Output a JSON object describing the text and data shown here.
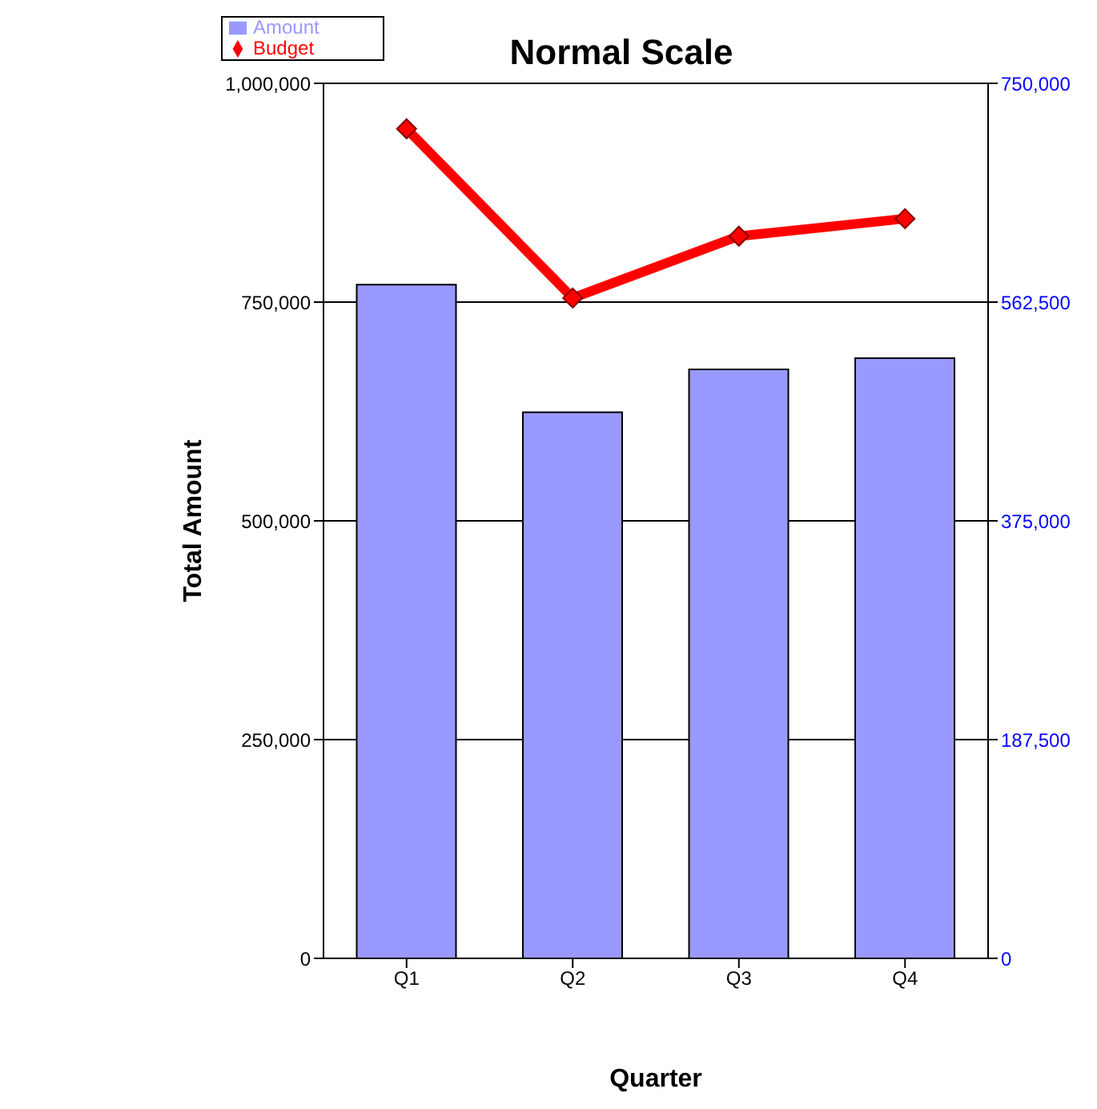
{
  "chart_data": {
    "type": "bar",
    "title": "Normal Scale",
    "xlabel": "Quarter",
    "ylabel": "Total Amount",
    "categories": [
      "Q1",
      "Q2",
      "Q3",
      "Q4"
    ],
    "series": [
      {
        "name": "Amount",
        "color": "#9999ff",
        "values": [
          770000,
          624000,
          673000,
          686000
        ]
      },
      {
        "name": "Budget",
        "type": "line",
        "axis": "y2",
        "color": "#ff0000",
        "marker": "diamond",
        "values": [
          711000,
          566000,
          619000,
          634000
        ]
      }
    ],
    "ylim": [
      0,
      1000000
    ],
    "yticks": [
      0,
      {
        "value": 250000,
        "label": "250,000"
      },
      {
        "value": 500000,
        "label": "500,000"
      },
      {
        "value": 750000,
        "label": "750,000"
      },
      {
        "value": 1000000,
        "label": "1,000,000"
      }
    ],
    "y2lim": [
      0,
      750000
    ],
    "y2ticks": [
      0,
      {
        "value": 187500,
        "label": "187,500"
      },
      {
        "value": 375000,
        "label": "375,000"
      },
      {
        "value": 562500,
        "label": "562,500"
      },
      {
        "value": 750000,
        "label": "750,000"
      }
    ],
    "grid": "y",
    "legend": "top left"
  }
}
